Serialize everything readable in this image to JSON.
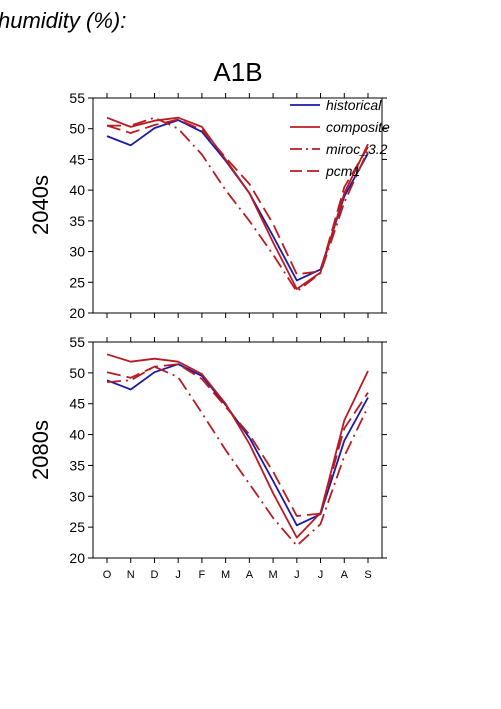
{
  "header": {
    "text": "humidity (%):"
  },
  "scenario": "A1B",
  "colors": {
    "historical": "#1a1aa8",
    "model": "#b81c22",
    "axis": "#000000"
  },
  "chart_data": [
    {
      "type": "line",
      "row_label": "2040s",
      "categories": [
        "O",
        "N",
        "D",
        "J",
        "F",
        "M",
        "A",
        "M",
        "J",
        "J",
        "A",
        "S"
      ],
      "ylim": [
        20,
        55
      ],
      "yticks": [
        "20",
        "25",
        "30",
        "35",
        "40",
        "45",
        "50",
        "55"
      ],
      "series": [
        {
          "name": "historical",
          "style": "solid",
          "color_key": "historical",
          "values": [
            48.8,
            47.3,
            50.1,
            51.4,
            49.5,
            44.8,
            39.5,
            32.5,
            25.3,
            27.1,
            39.0,
            46.0
          ]
        },
        {
          "name": "composite",
          "style": "solid",
          "color_key": "model",
          "values": [
            51.8,
            50.3,
            51.3,
            51.8,
            50.3,
            45.0,
            39.5,
            31.5,
            23.9,
            26.6,
            39.5,
            47.5
          ]
        },
        {
          "name": "miroc_3.2",
          "style": "dashdot",
          "color_key": "model",
          "values": [
            50.5,
            50.5,
            51.8,
            50.0,
            45.8,
            40.0,
            35.0,
            29.5,
            23.5,
            26.5,
            38.0,
            46.5
          ]
        },
        {
          "name": "pcm1",
          "style": "dash",
          "color_key": "model",
          "values": [
            50.5,
            49.3,
            50.6,
            51.5,
            49.8,
            45.3,
            41.0,
            34.5,
            26.3,
            26.8,
            40.5,
            47.0
          ]
        }
      ]
    },
    {
      "type": "line",
      "row_label": "2080s",
      "categories": [
        "O",
        "N",
        "D",
        "J",
        "F",
        "M",
        "A",
        "M",
        "J",
        "J",
        "A",
        "S"
      ],
      "ylim": [
        20,
        55
      ],
      "yticks": [
        "20",
        "25",
        "30",
        "35",
        "40",
        "45",
        "50",
        "55"
      ],
      "series": [
        {
          "name": "historical",
          "style": "solid",
          "color_key": "historical",
          "values": [
            48.8,
            47.3,
            50.1,
            51.4,
            49.5,
            44.8,
            39.5,
            32.5,
            25.3,
            27.1,
            39.0,
            46.0
          ]
        },
        {
          "name": "composite",
          "style": "solid",
          "color_key": "model",
          "values": [
            53.0,
            51.8,
            52.3,
            51.8,
            49.8,
            45.0,
            38.5,
            30.5,
            23.3,
            27.3,
            42.3,
            50.3
          ]
        },
        {
          "name": "miroc_3.2",
          "style": "dashdot",
          "color_key": "model",
          "values": [
            48.5,
            48.8,
            51.0,
            49.3,
            43.5,
            37.5,
            32.0,
            26.5,
            22.0,
            25.5,
            36.5,
            44.5
          ]
        },
        {
          "name": "pcm1",
          "style": "dash",
          "color_key": "model",
          "values": [
            50.1,
            49.2,
            51.0,
            51.4,
            49.0,
            44.5,
            40.0,
            34.0,
            26.8,
            27.2,
            41.0,
            46.8
          ]
        }
      ]
    }
  ],
  "legend": {
    "position": "top-right",
    "entries": [
      {
        "label": "historical",
        "style": "solid",
        "color_key": "historical"
      },
      {
        "label": "composite",
        "style": "solid",
        "color_key": "model"
      },
      {
        "label": "miroc_3.2",
        "style": "dashdot",
        "color_key": "model"
      },
      {
        "label": "pcm1",
        "style": "dash",
        "color_key": "model"
      }
    ]
  }
}
